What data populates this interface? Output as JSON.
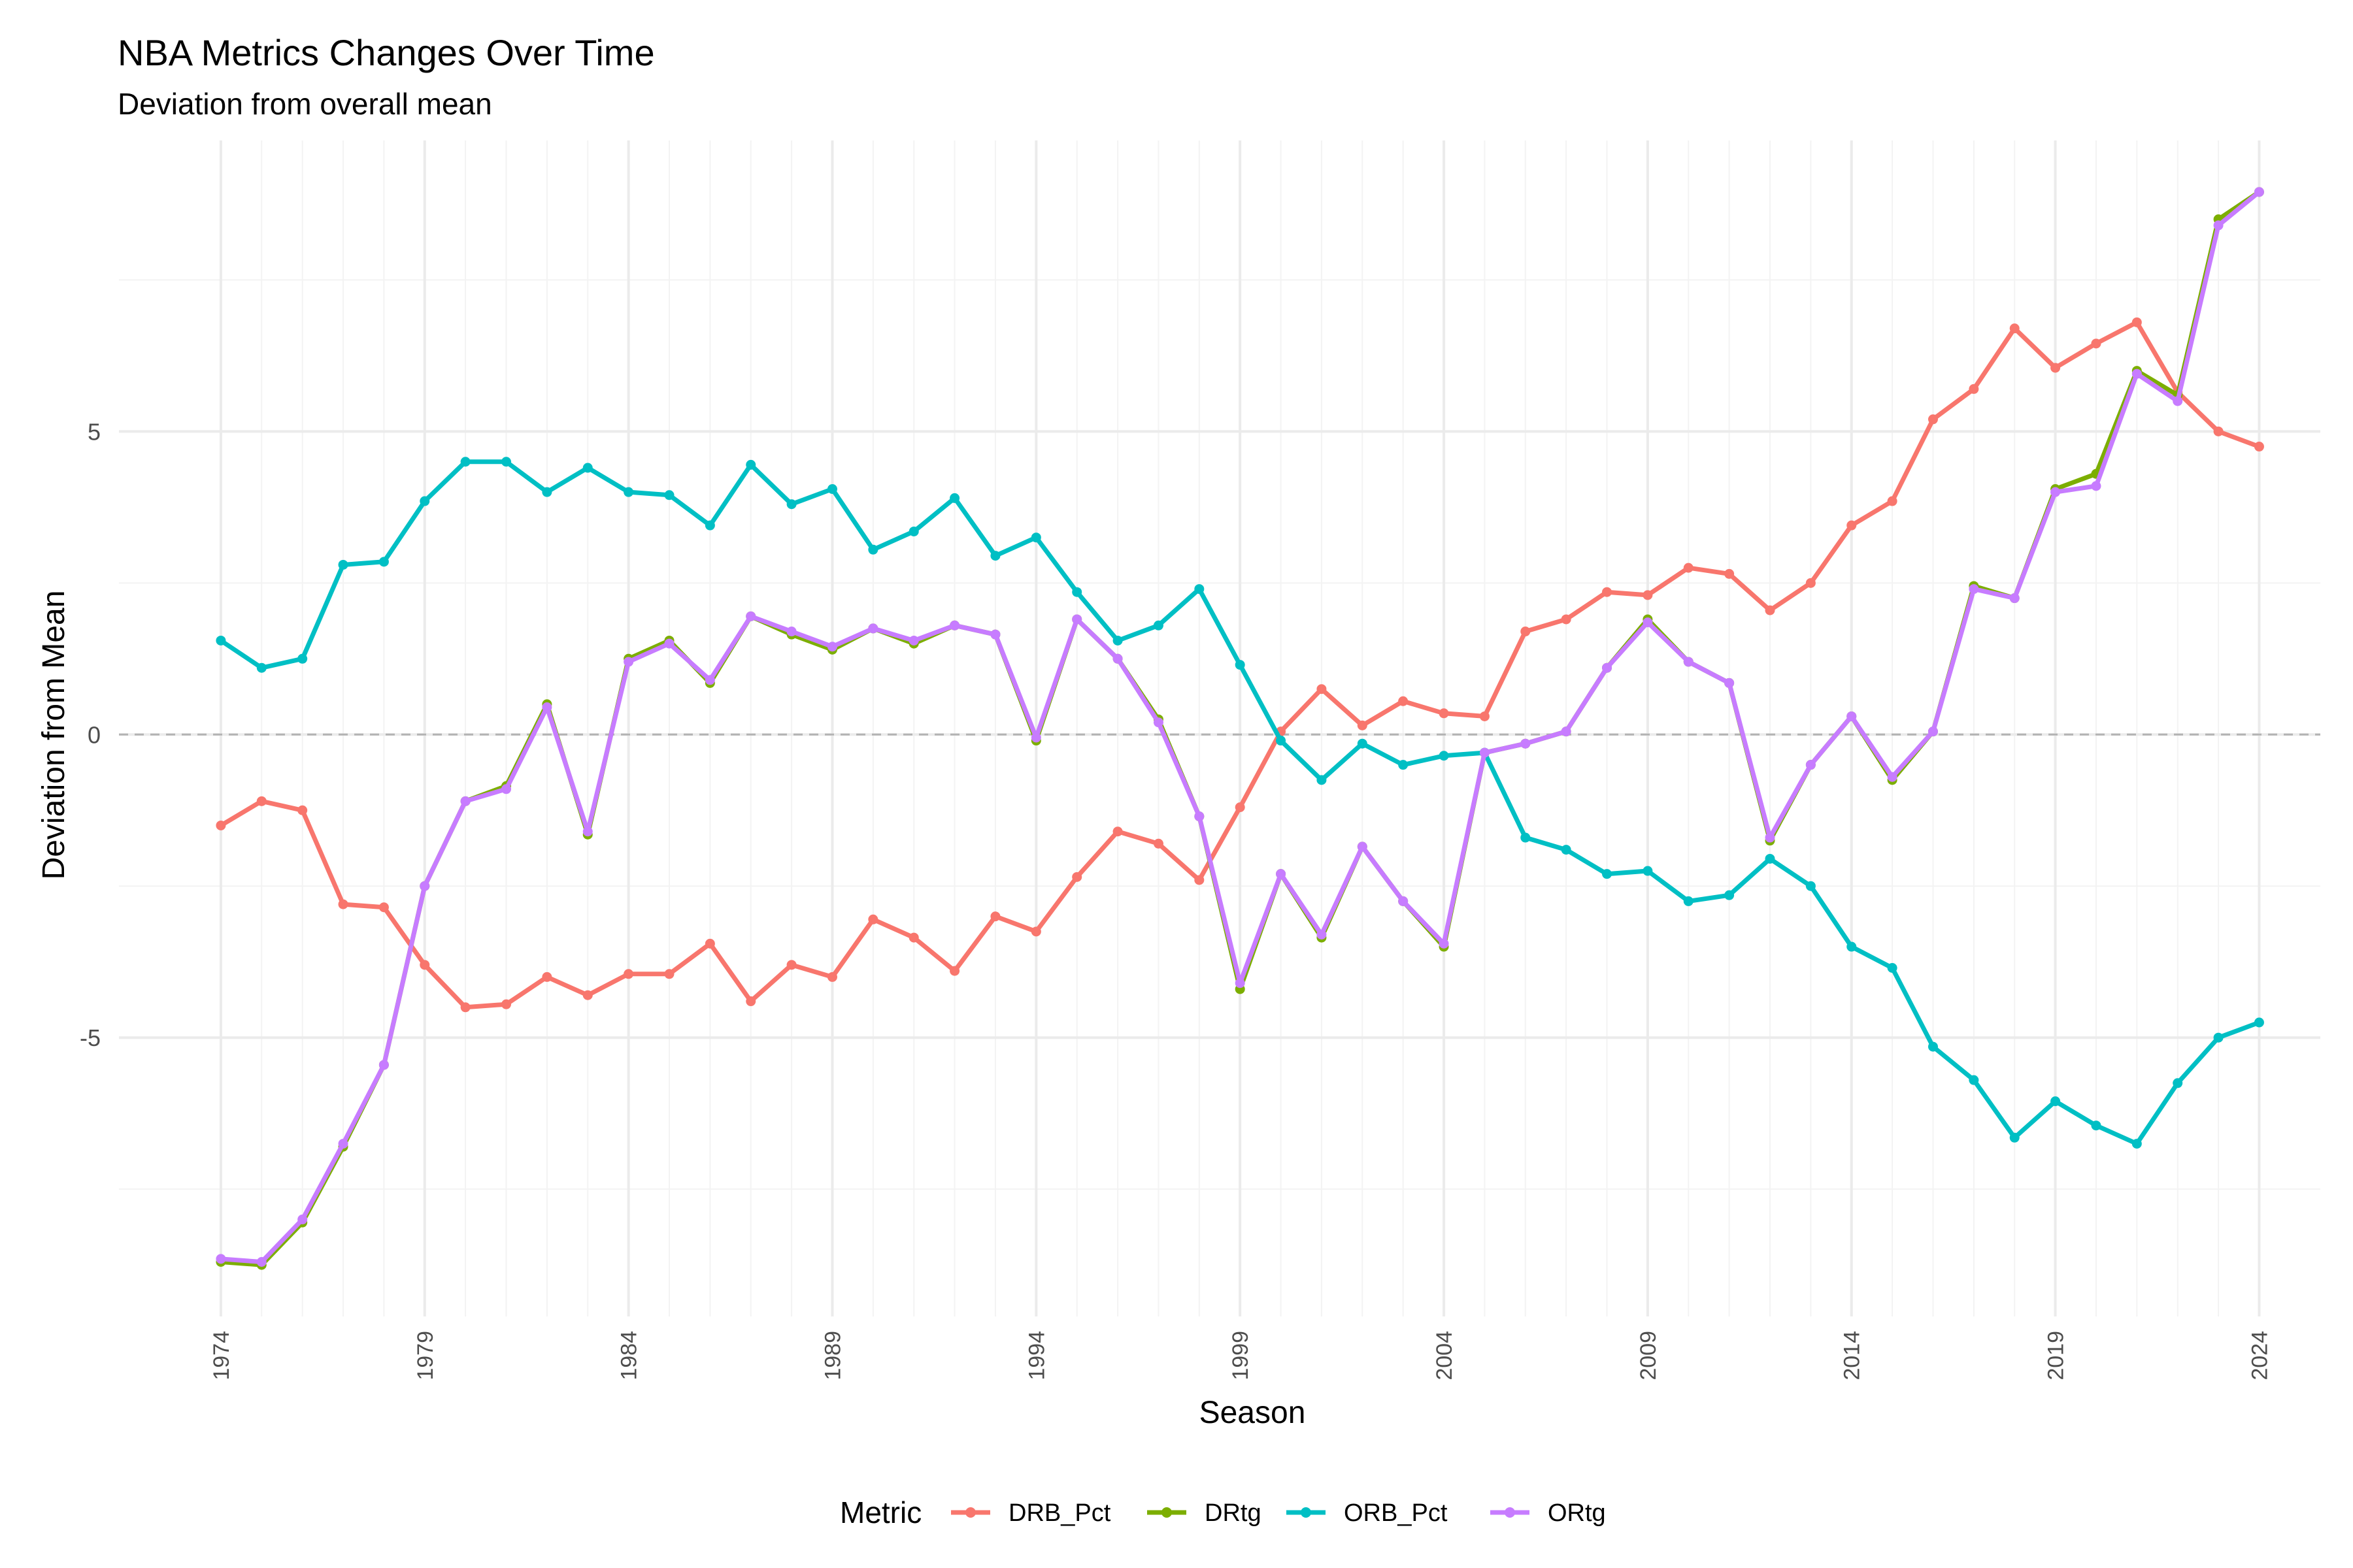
{
  "chart_data": {
    "type": "line",
    "title": "NBA Metrics Changes Over Time",
    "subtitle": "Deviation from overall mean",
    "xlabel": "Season",
    "ylabel": "Deviation from Mean",
    "xlim": [
      1971.5,
      2025.5
    ],
    "ylim": [
      -9.6,
      9.8
    ],
    "x_ticks": [
      1974,
      1979,
      1984,
      1989,
      1994,
      1999,
      2004,
      2009,
      2014,
      2019,
      2024
    ],
    "y_ticks": [
      -5,
      0,
      5
    ],
    "grid": true,
    "reference_line": 0,
    "legend_title": "Metric",
    "legend_position": "bottom",
    "x": [
      1974,
      1975,
      1976,
      1977,
      1978,
      1979,
      1980,
      1981,
      1982,
      1983,
      1984,
      1985,
      1986,
      1987,
      1988,
      1989,
      1990,
      1991,
      1992,
      1993,
      1994,
      1995,
      1996,
      1997,
      1998,
      1999,
      2000,
      2001,
      2002,
      2003,
      2004,
      2005,
      2006,
      2007,
      2008,
      2009,
      2010,
      2011,
      2012,
      2013,
      2014,
      2015,
      2016,
      2017,
      2018,
      2019,
      2020,
      2021,
      2022,
      2023,
      2024
    ],
    "series": [
      {
        "name": "DRB_Pct",
        "color": "#F8766D",
        "values": [
          -1.5,
          -1.1,
          -1.25,
          -2.8,
          -2.85,
          -3.8,
          -4.5,
          -4.45,
          -4.0,
          -4.3,
          -3.95,
          -3.95,
          -3.45,
          -4.4,
          -3.8,
          -4.0,
          -3.05,
          -3.35,
          -3.9,
          -3.0,
          -3.25,
          -2.35,
          -1.6,
          -1.8,
          -2.4,
          -1.2,
          0.05,
          0.75,
          0.15,
          0.55,
          0.35,
          0.3,
          1.7,
          1.9,
          2.35,
          2.3,
          2.75,
          2.65,
          2.05,
          2.5,
          3.45,
          3.85,
          5.2,
          5.7,
          6.7,
          6.05,
          6.45,
          6.8,
          5.65,
          5.0,
          4.75
        ]
      },
      {
        "name": "DRtg",
        "color": "#7CAE00",
        "values": [
          -8.7,
          -8.75,
          -8.05,
          -6.8,
          -5.45,
          -2.5,
          -1.1,
          -0.85,
          0.5,
          -1.65,
          1.25,
          1.55,
          0.85,
          1.95,
          1.65,
          1.4,
          1.75,
          1.5,
          1.8,
          1.65,
          -0.1,
          1.9,
          1.25,
          0.25,
          -1.35,
          -4.2,
          -2.3,
          -3.35,
          -1.85,
          -2.75,
          -3.5,
          -0.3,
          -0.15,
          0.05,
          1.1,
          1.9,
          1.2,
          0.85,
          -1.75,
          -0.5,
          0.3,
          -0.75,
          0.05,
          2.45,
          2.25,
          4.05,
          4.3,
          6.0,
          5.6,
          8.5,
          8.95
        ]
      },
      {
        "name": "ORB_Pct",
        "color": "#00BFC4",
        "values": [
          1.55,
          1.1,
          1.25,
          2.8,
          2.85,
          3.85,
          4.5,
          4.5,
          4.0,
          4.4,
          4.0,
          3.95,
          3.45,
          4.45,
          3.8,
          4.05,
          3.05,
          3.35,
          3.9,
          2.95,
          3.25,
          2.35,
          1.55,
          1.8,
          2.4,
          1.15,
          -0.1,
          -0.75,
          -0.15,
          -0.5,
          -0.35,
          -0.3,
          -1.7,
          -1.9,
          -2.3,
          -2.25,
          -2.75,
          -2.65,
          -2.05,
          -2.5,
          -3.5,
          -3.85,
          -5.15,
          -5.7,
          -6.65,
          -6.05,
          -6.45,
          -6.75,
          -5.75,
          -5.0,
          -4.75
        ]
      },
      {
        "name": "ORtg",
        "color": "#C77CFF",
        "values": [
          -8.65,
          -8.7,
          -8.0,
          -6.75,
          -5.45,
          -2.5,
          -1.1,
          -0.9,
          0.45,
          -1.6,
          1.2,
          1.5,
          0.9,
          1.95,
          1.7,
          1.45,
          1.75,
          1.55,
          1.8,
          1.65,
          -0.05,
          1.9,
          1.25,
          0.2,
          -1.35,
          -4.1,
          -2.3,
          -3.3,
          -1.85,
          -2.75,
          -3.45,
          -0.3,
          -0.15,
          0.05,
          1.1,
          1.85,
          1.2,
          0.85,
          -1.7,
          -0.5,
          0.3,
          -0.7,
          0.05,
          2.4,
          2.25,
          4.0,
          4.1,
          5.95,
          5.5,
          8.4,
          8.95
        ]
      }
    ]
  }
}
